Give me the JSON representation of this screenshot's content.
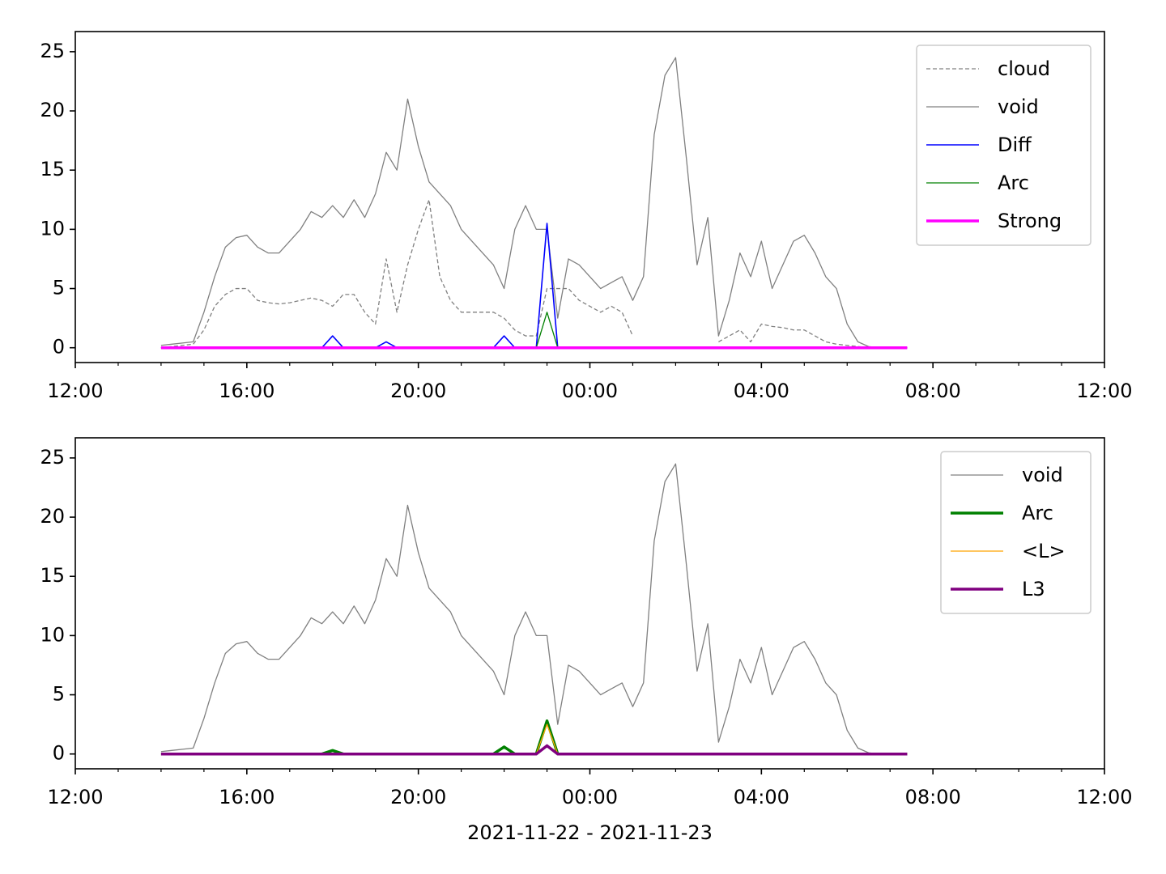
{
  "chart_data": [
    {
      "type": "line",
      "x": [
        14,
        14.25,
        14.5,
        14.75,
        15,
        15.25,
        15.5,
        15.75,
        16,
        16.25,
        16.5,
        16.75,
        17,
        17.25,
        17.5,
        17.75,
        18,
        18.25,
        18.5,
        18.75,
        19,
        19.25,
        19.5,
        19.75,
        20,
        20.25,
        20.5,
        20.75,
        21,
        21.25,
        21.5,
        21.75,
        22,
        22.25,
        22.5,
        22.75,
        23,
        23.25,
        23.5,
        23.75,
        24,
        24.25,
        24.5,
        24.75,
        25,
        25.25,
        25.5,
        25.75,
        26,
        26.25,
        26.5,
        26.75,
        27,
        27.25,
        27.5,
        27.75,
        28,
        28.25,
        28.5,
        28.75,
        29,
        29.25,
        29.5,
        29.75,
        30,
        30.25,
        30.5,
        30.75,
        31,
        31.25,
        31.4
      ],
      "xlim": [
        12,
        36
      ],
      "xticks": [
        {
          "value": 12,
          "label": "12:00"
        },
        {
          "value": 16,
          "label": "16:00"
        },
        {
          "value": 20,
          "label": "20:00"
        },
        {
          "value": 24,
          "label": "00:00"
        },
        {
          "value": 28,
          "label": "04:00"
        },
        {
          "value": 32,
          "label": "08:00"
        },
        {
          "value": 36,
          "label": "12:00"
        }
      ],
      "xminorticks": [
        13,
        14,
        15,
        17,
        18,
        19,
        21,
        22,
        23,
        25,
        26,
        27,
        29,
        30,
        31,
        33,
        34,
        35
      ],
      "ylim": [
        -1.25,
        26.7
      ],
      "yticks": [
        0,
        5,
        10,
        15,
        20,
        25
      ],
      "legend": "upper right",
      "series": [
        {
          "name": "cloud",
          "color": "#808080",
          "linestyle": "dashed",
          "linewidth": 1.3,
          "values": [
            0,
            0.1,
            0.2,
            0.3,
            1.5,
            3.5,
            4.5,
            5,
            5,
            4,
            3.8,
            3.7,
            3.8,
            4,
            4.2,
            4,
            3.5,
            4.5,
            4.5,
            3,
            2,
            7.5,
            3,
            7,
            10,
            12.5,
            6,
            4,
            3,
            3,
            3,
            3,
            2.5,
            1.5,
            1,
            1,
            5,
            5,
            5,
            4,
            3.5,
            3,
            3.5,
            3,
            1,
            null,
            null,
            null,
            null,
            null,
            null,
            null,
            0.5,
            1,
            1.5,
            0.5,
            2,
            1.8,
            1.7,
            1.5,
            1.5,
            1,
            0.5,
            0.3,
            0.2,
            0.1,
            0,
            0,
            0,
            0,
            0
          ]
        },
        {
          "name": "void",
          "color": "#808080",
          "linestyle": "solid",
          "linewidth": 1.3,
          "values": [
            0.2,
            0.3,
            0.4,
            0.5,
            3,
            6,
            8.5,
            9.3,
            9.5,
            8.5,
            8,
            8,
            9,
            10,
            11.5,
            11,
            12,
            11,
            12.5,
            11,
            13,
            16.5,
            15,
            21,
            17,
            14,
            13,
            12,
            10,
            9,
            8,
            7,
            5,
            10,
            12,
            10,
            10,
            2.5,
            7.5,
            7,
            6,
            5,
            5.5,
            6,
            4,
            6,
            18,
            23,
            24.5,
            16,
            7,
            11,
            1,
            4,
            8,
            6,
            9,
            5,
            7,
            9,
            9.5,
            8,
            6,
            5,
            2,
            0.5,
            0.1,
            0,
            0,
            0,
            0
          ]
        },
        {
          "name": "Diff",
          "color": "#0000ff",
          "linestyle": "solid",
          "linewidth": 1.6,
          "values": [
            0,
            0,
            0,
            0,
            0,
            0,
            0,
            0,
            0,
            0,
            0,
            0,
            0,
            0,
            0,
            0,
            1,
            0,
            0,
            0,
            0,
            0.5,
            0,
            0,
            0,
            0,
            0,
            0,
            0,
            0,
            0,
            0,
            1,
            0,
            0,
            0,
            10.5,
            0,
            0,
            0,
            0,
            0,
            0,
            0,
            0,
            0,
            0,
            0,
            0,
            0,
            0,
            0,
            0,
            0,
            0,
            0,
            0,
            0,
            0,
            0,
            0,
            0,
            0,
            0,
            0,
            0,
            0,
            0,
            0,
            0,
            0
          ]
        },
        {
          "name": "Arc",
          "color": "#008000",
          "linestyle": "solid",
          "linewidth": 1.3,
          "values": [
            0,
            0,
            0,
            0,
            0,
            0,
            0,
            0,
            0,
            0,
            0,
            0,
            0,
            0,
            0,
            0,
            0,
            0,
            0,
            0,
            0,
            0,
            0,
            0,
            0,
            0,
            0,
            0,
            0,
            0,
            0,
            0,
            0,
            0,
            0,
            0,
            3,
            0,
            0,
            0,
            0,
            0,
            0,
            0,
            0,
            0,
            0,
            0,
            0,
            0,
            0,
            0,
            0,
            0,
            0,
            0,
            0,
            0,
            0,
            0,
            0,
            0,
            0,
            0,
            0,
            0,
            0,
            0,
            0,
            0,
            0
          ]
        },
        {
          "name": "Strong",
          "color": "#ff00ff",
          "linestyle": "solid",
          "linewidth": 3.5,
          "values": [
            0,
            0,
            0,
            0,
            0,
            0,
            0,
            0,
            0,
            0,
            0,
            0,
            0,
            0,
            0,
            0,
            0,
            0,
            0,
            0,
            0,
            0,
            0,
            0,
            0,
            0,
            0,
            0,
            0,
            0,
            0,
            0,
            0,
            0,
            0,
            0,
            0,
            0,
            0,
            0,
            0,
            0,
            0,
            0,
            0,
            0,
            0,
            0,
            0,
            0,
            0,
            0,
            0,
            0,
            0,
            0,
            0,
            0,
            0,
            0,
            0,
            0,
            0,
            0,
            0,
            0,
            0,
            0,
            0,
            0,
            0
          ]
        }
      ]
    },
    {
      "type": "line",
      "x": [
        14,
        14.25,
        14.5,
        14.75,
        15,
        15.25,
        15.5,
        15.75,
        16,
        16.25,
        16.5,
        16.75,
        17,
        17.25,
        17.5,
        17.75,
        18,
        18.25,
        18.5,
        18.75,
        19,
        19.25,
        19.5,
        19.75,
        20,
        20.25,
        20.5,
        20.75,
        21,
        21.25,
        21.5,
        21.75,
        22,
        22.25,
        22.5,
        22.75,
        23,
        23.25,
        23.5,
        23.75,
        24,
        24.25,
        24.5,
        24.75,
        25,
        25.25,
        25.5,
        25.75,
        26,
        26.25,
        26.5,
        26.75,
        27,
        27.25,
        27.5,
        27.75,
        28,
        28.25,
        28.5,
        28.75,
        29,
        29.25,
        29.5,
        29.75,
        30,
        30.25,
        30.5,
        30.75,
        31,
        31.25,
        31.4
      ],
      "xlim": [
        12,
        36
      ],
      "xticks": [
        {
          "value": 12,
          "label": "12:00"
        },
        {
          "value": 16,
          "label": "16:00"
        },
        {
          "value": 20,
          "label": "20:00"
        },
        {
          "value": 24,
          "label": "00:00"
        },
        {
          "value": 28,
          "label": "04:00"
        },
        {
          "value": 32,
          "label": "08:00"
        },
        {
          "value": 36,
          "label": "12:00"
        }
      ],
      "xminorticks": [
        13,
        14,
        15,
        17,
        18,
        19,
        21,
        22,
        23,
        25,
        26,
        27,
        29,
        30,
        31,
        33,
        34,
        35
      ],
      "xlabel": "2021-11-22 - 2021-11-23",
      "ylim": [
        -1.25,
        26.7
      ],
      "yticks": [
        0,
        5,
        10,
        15,
        20,
        25
      ],
      "legend": "upper right",
      "series": [
        {
          "name": "void",
          "color": "#808080",
          "linestyle": "solid",
          "linewidth": 1.3,
          "values": [
            0.2,
            0.3,
            0.4,
            0.5,
            3,
            6,
            8.5,
            9.3,
            9.5,
            8.5,
            8,
            8,
            9,
            10,
            11.5,
            11,
            12,
            11,
            12.5,
            11,
            13,
            16.5,
            15,
            21,
            17,
            14,
            13,
            12,
            10,
            9,
            8,
            7,
            5,
            10,
            12,
            10,
            10,
            2.5,
            7.5,
            7,
            6,
            5,
            5.5,
            6,
            4,
            6,
            18,
            23,
            24.5,
            16,
            7,
            11,
            1,
            4,
            8,
            6,
            9,
            5,
            7,
            9,
            9.5,
            8,
            6,
            5,
            2,
            0.5,
            0.1,
            0,
            0,
            0,
            0
          ]
        },
        {
          "name": "Arc",
          "color": "#008000",
          "linestyle": "solid",
          "linewidth": 3.5,
          "values": [
            0,
            0,
            0,
            0,
            0,
            0,
            0,
            0,
            0,
            0,
            0,
            0,
            0,
            0,
            0,
            0,
            0.3,
            0,
            0,
            0,
            0,
            0,
            0,
            0,
            0,
            0,
            0,
            0,
            0,
            0,
            0,
            0,
            0.6,
            0,
            0,
            0,
            2.8,
            0,
            0,
            0,
            0,
            0,
            0,
            0,
            0,
            0,
            0,
            0,
            0,
            0,
            0,
            0,
            0,
            0,
            0,
            0,
            0,
            0,
            0,
            0,
            0,
            0,
            0,
            0,
            0,
            0,
            0,
            0,
            0,
            0,
            0
          ]
        },
        {
          "name": "<L>",
          "color": "#ffa500",
          "linestyle": "solid",
          "linewidth": 1.3,
          "values": [
            0,
            0,
            0,
            0,
            0,
            0,
            0,
            0,
            0,
            0,
            0,
            0,
            0,
            0,
            0,
            0,
            0,
            0,
            0,
            0,
            0,
            0,
            0,
            0,
            0,
            0,
            0,
            0,
            0,
            0,
            0,
            0,
            0,
            0,
            0,
            0,
            2.5,
            0,
            0,
            0,
            0,
            0,
            0,
            0,
            0,
            0,
            0,
            0,
            0,
            0,
            0,
            0,
            0,
            0,
            0,
            0,
            0,
            0,
            0,
            0,
            0,
            0,
            0,
            0,
            0,
            0,
            0,
            0,
            0,
            0,
            0
          ]
        },
        {
          "name": "L3",
          "color": "#800080",
          "linestyle": "solid",
          "linewidth": 3.5,
          "values": [
            0,
            0,
            0,
            0,
            0,
            0,
            0,
            0,
            0,
            0,
            0,
            0,
            0,
            0,
            0,
            0,
            0,
            0,
            0,
            0,
            0,
            0,
            0,
            0,
            0,
            0,
            0,
            0,
            0,
            0,
            0,
            0,
            0,
            0,
            0,
            0,
            0.7,
            0,
            0,
            0,
            0,
            0,
            0,
            0,
            0,
            0,
            0,
            0,
            0,
            0,
            0,
            0,
            0,
            0,
            0,
            0,
            0,
            0,
            0,
            0,
            0,
            0,
            0,
            0,
            0,
            0,
            0,
            0,
            0,
            0,
            0
          ]
        }
      ]
    }
  ]
}
